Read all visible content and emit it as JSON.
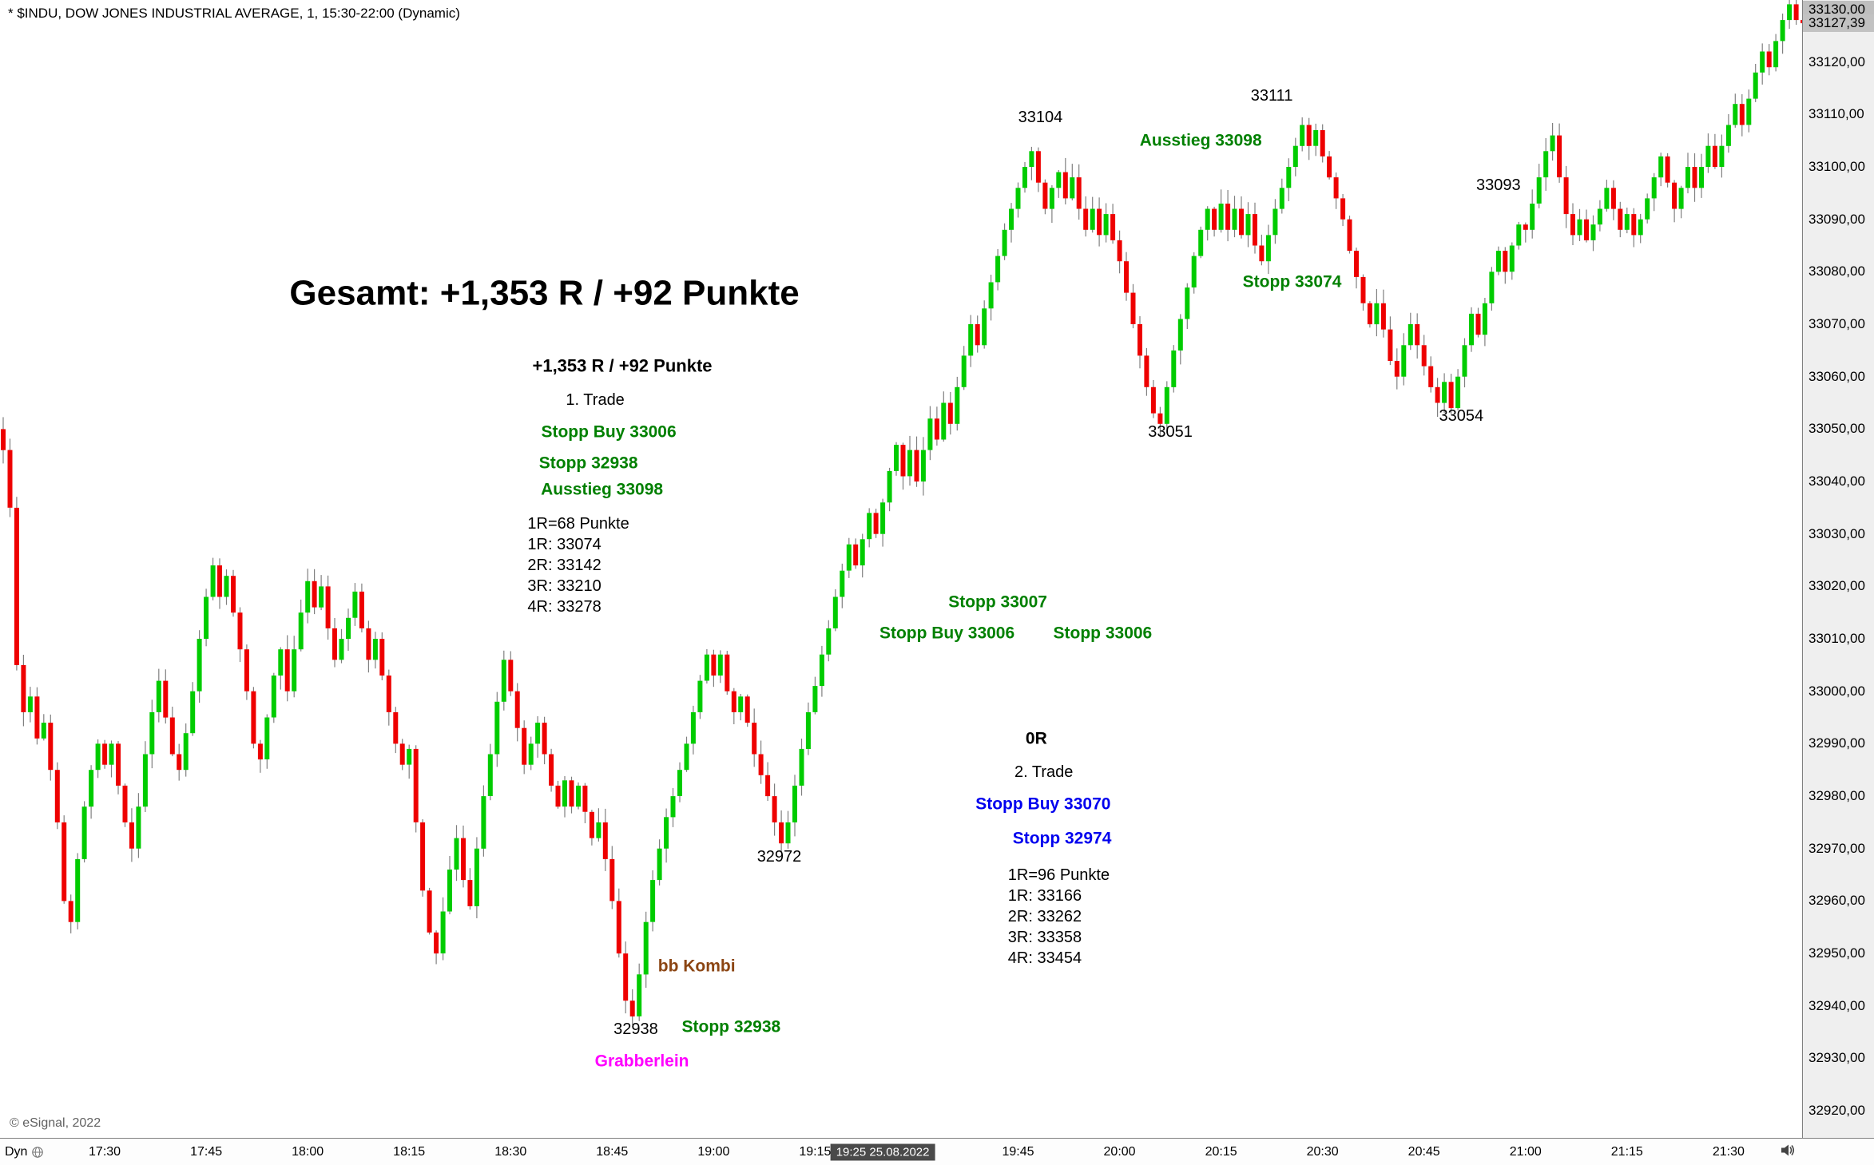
{
  "header": {
    "title": "* $INDU, DOW JONES INDUSTRIAL AVERAGE, 1, 15:30-22:00 (Dynamic)"
  },
  "footer": {
    "copyright": "© eSignal, 2022",
    "mode_label": "Dyn",
    "time_badge": {
      "t": 130,
      "label": "19:25 25.08.2022"
    },
    "time_ticks": [
      [
        15,
        "17:30"
      ],
      [
        30,
        "17:45"
      ],
      [
        45,
        "18:00"
      ],
      [
        60,
        "18:15"
      ],
      [
        75,
        "18:30"
      ],
      [
        90,
        "18:45"
      ],
      [
        105,
        "19:00"
      ],
      [
        120,
        "19:15"
      ],
      [
        150,
        "19:45"
      ],
      [
        165,
        "20:00"
      ],
      [
        180,
        "20:15"
      ],
      [
        195,
        "20:30"
      ],
      [
        210,
        "20:45"
      ],
      [
        225,
        "21:00"
      ],
      [
        240,
        "21:15"
      ],
      [
        255,
        "21:30"
      ]
    ]
  },
  "price_axis": {
    "ticks": [
      [
        33130,
        "33130,00",
        1
      ],
      [
        33120,
        "33120,00",
        0
      ],
      [
        33110,
        "33110,00",
        0
      ],
      [
        33100,
        "33100,00",
        0
      ],
      [
        33090,
        "33090,00",
        0
      ],
      [
        33080,
        "33080,00",
        0
      ],
      [
        33070,
        "33070,00",
        0
      ],
      [
        33060,
        "33060,00",
        0
      ],
      [
        33050,
        "33050,00",
        0
      ],
      [
        33040,
        "33040,00",
        0
      ],
      [
        33030,
        "33030,00",
        0
      ],
      [
        33020,
        "33020,00",
        0
      ],
      [
        33010,
        "33010,00",
        0
      ],
      [
        33000,
        "33000,00",
        0
      ],
      [
        32990,
        "32990,00",
        0
      ],
      [
        32980,
        "32980,00",
        0
      ],
      [
        32970,
        "32970,00",
        0
      ],
      [
        32960,
        "32960,00",
        0
      ],
      [
        32950,
        "32950,00",
        0
      ],
      [
        32940,
        "32940,00",
        0
      ],
      [
        32930,
        "32930,00",
        0
      ],
      [
        32920,
        "32920,00",
        0
      ]
    ],
    "last_price": {
      "value": 33127.39,
      "label": "33127,39"
    }
  },
  "chart_data": {
    "type": "candlestick",
    "title": "$INDU, DOW JONES INDUSTRIAL AVERAGE, 1 min, 15:30-22:00 (Dynamic)",
    "interval_minutes": 1,
    "x_start": "17:15",
    "ylim": [
      32915,
      33132
    ],
    "y_tick_step": 10,
    "last_price": 33127.39,
    "first_open": 33050,
    "colors": {
      "up": "#00CC00",
      "down": "#EE0000",
      "wick": "#808080"
    },
    "closes": [
      33046,
      33035,
      33005,
      32996,
      32999,
      32991,
      32994,
      32985,
      32975,
      32960,
      32956,
      32968,
      32978,
      32985,
      32990,
      32986,
      32990,
      32982,
      32975,
      32970,
      32978,
      32988,
      32996,
      33002,
      32995,
      32988,
      32985,
      32992,
      33000,
      33010,
      33018,
      33024,
      33018,
      33022,
      33015,
      33008,
      33000,
      32990,
      32987,
      32995,
      33003,
      33008,
      33000,
      33008,
      33015,
      33021,
      33016,
      33020,
      33012,
      33006,
      33010,
      33014,
      33019,
      33012,
      33006,
      33010,
      33003,
      32996,
      32990,
      32986,
      32989,
      32975,
      32962,
      32954,
      32950,
      32958,
      32966,
      32972,
      32964,
      32959,
      32970,
      32980,
      32988,
      32998,
      33006,
      33000,
      32993,
      32986,
      32990,
      32994,
      32988,
      32982,
      32978,
      32983,
      32978,
      32982,
      32977,
      32972,
      32975,
      32968,
      32960,
      32950,
      32941,
      32938,
      32946,
      32956,
      32964,
      32970,
      32976,
      32980,
      32985,
      32990,
      32996,
      33002,
      33007,
      33003,
      33007,
      33000,
      32996,
      32999,
      32994,
      32988,
      32984,
      32980,
      32975,
      32971,
      32975,
      32982,
      32989,
      32996,
      33001,
      33007,
      33012,
      33018,
      33023,
      33028,
      33024,
      33029,
      33034,
      33030,
      33036,
      33042,
      33047,
      33041,
      33046,
      33040,
      33046,
      33052,
      33048,
      33055,
      33051,
      33058,
      33064,
      33070,
      33066,
      33073,
      33078,
      33083,
      33088,
      33092,
      33096,
      33100,
      33103,
      33097,
      33092,
      33096,
      33099,
      33094,
      33098,
      33092,
      33088,
      33092,
      33087,
      33091,
      33086,
      33082,
      33076,
      33070,
      33064,
      33058,
      33053,
      33051,
      33058,
      33065,
      33071,
      33077,
      33083,
      33088,
      33092,
      33088,
      33093,
      33088,
      33092,
      33087,
      33091,
      33085,
      33082,
      33087,
      33092,
      33096,
      33100,
      33104,
      33108,
      33104,
      33107,
      33102,
      33098,
      33094,
      33090,
      33084,
      33079,
      33074,
      33070,
      33074,
      33069,
      33063,
      33060,
      33066,
      33070,
      33066,
      33062,
      33058,
      33055,
      33059,
      33054,
      33060,
      33066,
      33072,
      33068,
      33074,
      33080,
      33084,
      33080,
      33085,
      33089,
      33088,
      33093,
      33098,
      33103,
      33106,
      33098,
      33091,
      33087,
      33090,
      33086,
      33089,
      33092,
      33096,
      33092,
      33088,
      33091,
      33087,
      33090,
      33094,
      33098,
      33102,
      33097,
      33092,
      33096,
      33100,
      33096,
      33100,
      33104,
      33100,
      33104,
      33108,
      33112,
      33108,
      33113,
      33118,
      33122,
      33119,
      33124,
      33128,
      33131,
      33128,
      33127.39
    ]
  },
  "annotations": [
    {
      "text": "Gesamt: +1,353 R / +92 Punkte",
      "t": 80,
      "price": 33076,
      "color": "#000000",
      "size": 44,
      "bold": true
    },
    {
      "text": "+1,353 R / +92 Punkte",
      "t": 91.5,
      "price": 33062,
      "color": "#000000",
      "size": 22,
      "bold": true
    },
    {
      "text": "1. Trade",
      "t": 87.5,
      "price": 33055.5,
      "color": "#000000",
      "size": 20,
      "bold": false
    },
    {
      "text": "Stopp Buy 33006",
      "t": 89.5,
      "price": 33049.5,
      "color": "#008000",
      "size": 21,
      "bold": true
    },
    {
      "text": "Stopp 32938",
      "t": 86.5,
      "price": 33043.5,
      "color": "#008000",
      "size": 21,
      "bold": true
    },
    {
      "text": "Ausstieg 33098",
      "t": 88.5,
      "price": 33038.5,
      "color": "#008000",
      "size": 21,
      "bold": true
    },
    {
      "text": "1R=68 Punkte\n1R: 33074\n2R: 33142\n3R: 33210\n4R: 33278",
      "t": 77.5,
      "price": 33024,
      "color": "#000000",
      "size": 20,
      "bold": false,
      "align": "left"
    },
    {
      "text": "33104",
      "t": 153.3,
      "price": 33109.5,
      "color": "#000000",
      "size": 20,
      "bold": false
    },
    {
      "text": "Ausstieg 33098",
      "t": 177,
      "price": 33105,
      "color": "#008000",
      "size": 21,
      "bold": true
    },
    {
      "text": "33111",
      "t": 187.5,
      "price": 33113.5,
      "color": "#000000",
      "size": 20,
      "bold": false
    },
    {
      "text": "Stopp 33074",
      "t": 190.5,
      "price": 33078,
      "color": "#008000",
      "size": 21,
      "bold": true
    },
    {
      "text": "33093",
      "t": 221,
      "price": 33096.5,
      "color": "#000000",
      "size": 20,
      "bold": false
    },
    {
      "text": "33051",
      "t": 172.5,
      "price": 33049.5,
      "color": "#000000",
      "size": 20,
      "bold": false
    },
    {
      "text": "33054",
      "t": 215.5,
      "price": 33052.5,
      "color": "#000000",
      "size": 20,
      "bold": false
    },
    {
      "text": "Stopp 33007",
      "t": 147,
      "price": 33017,
      "color": "#008000",
      "size": 21,
      "bold": true
    },
    {
      "text": "Stopp Buy 33006",
      "t": 139.5,
      "price": 33011,
      "color": "#008000",
      "size": 21,
      "bold": true
    },
    {
      "text": "Stopp 33006",
      "t": 162.5,
      "price": 33011,
      "color": "#008000",
      "size": 21,
      "bold": true
    },
    {
      "text": "0R",
      "t": 152.7,
      "price": 32991,
      "color": "#000000",
      "size": 21,
      "bold": true
    },
    {
      "text": "2. Trade",
      "t": 153.8,
      "price": 32984.5,
      "color": "#000000",
      "size": 20,
      "bold": false
    },
    {
      "text": "Stopp Buy 33070",
      "t": 153.7,
      "price": 32978.5,
      "color": "#0000EE",
      "size": 21,
      "bold": true
    },
    {
      "text": "Stopp 32974",
      "t": 156.5,
      "price": 32972,
      "color": "#0000EE",
      "size": 21,
      "bold": true
    },
    {
      "text": "1R=96 Punkte\n1R: 33166\n2R: 33262\n3R: 33358\n4R: 33454",
      "t": 148.5,
      "price": 32957,
      "color": "#000000",
      "size": 20,
      "bold": false,
      "align": "left"
    },
    {
      "text": "32972",
      "t": 114.7,
      "price": 32968.5,
      "color": "#000000",
      "size": 20,
      "bold": false
    },
    {
      "text": "bb Kombi",
      "t": 102.5,
      "price": 32947.5,
      "color": "#8B4513",
      "size": 21,
      "bold": true
    },
    {
      "text": "32938",
      "t": 93.5,
      "price": 32935.5,
      "color": "#000000",
      "size": 20,
      "bold": false
    },
    {
      "text": "Stopp 32938",
      "t": 107.6,
      "price": 32936,
      "color": "#008000",
      "size": 21,
      "bold": true
    },
    {
      "text": "Grabberlein",
      "t": 94.4,
      "price": 32929.5,
      "color": "#FF00FF",
      "size": 21,
      "bold": true
    }
  ]
}
